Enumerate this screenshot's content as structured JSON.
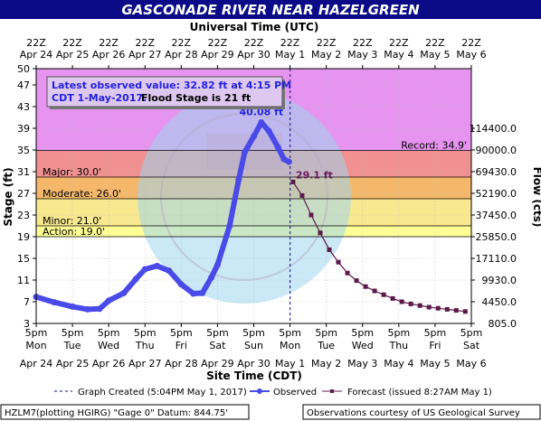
{
  "title": "GASCONADE RIVER NEAR HAZELGREEN",
  "top_axis_title": "Universal Time (UTC)",
  "bottom_axis_title": "Site Time (CDT)",
  "left_axis_title": "Stage (ft)",
  "right_axis_title": "Flow (cts)",
  "info_box": {
    "line1": "Latest observed value: 32.82 ft at 4:15 PM",
    "line2a": "CDT 1-May-2017.",
    "line2b": "Flood Stage is 21 ft"
  },
  "legend": {
    "created": "Graph Created (5:04PM May 1, 2017)",
    "observed": "Observed",
    "forecast": "Forecast (issued 8:27AM May 1)"
  },
  "footer": {
    "left": "HZLM7(plotting HGIRG) \"Gage 0\" Datum: 844.75'",
    "right": "Observations courtesy of US Geological Survey"
  },
  "colors": {
    "title_bar": "#0b0b88",
    "record": "#e694f0",
    "major": "#f09090",
    "moderate": "#f5b86a",
    "minor": "#f8e890",
    "action": "#ffff96",
    "observed": "#4a4ae8",
    "forecast": "#5c1a4a",
    "info_box_text": "#2222dd",
    "peak_label": "#2222dd",
    "forecast_label": "#6a1a5a"
  },
  "chart_data": {
    "type": "line",
    "x_time_axis": "Site Time (CDT)",
    "x_range": [
      "2017-04-24 17:00",
      "2017-05-06 17:00"
    ],
    "y_left": {
      "label": "Stage (ft)",
      "range": [
        3,
        50
      ],
      "ticks": [
        "3",
        "7",
        "11",
        "15",
        "19",
        "23",
        "27",
        "31",
        "35",
        "39",
        "43",
        "47",
        "50"
      ]
    },
    "y_right": {
      "label": "Flow (cts)",
      "ticks": [
        {
          "label": "805.0",
          "stage": 3
        },
        {
          "label": "4450.0",
          "stage": 7
        },
        {
          "label": "9930.0",
          "stage": 11
        },
        {
          "label": "17110.0",
          "stage": 15
        },
        {
          "label": "25850.0",
          "stage": 19
        },
        {
          "label": "37450.0",
          "stage": 23
        },
        {
          "label": "52190.0",
          "stage": 27
        },
        {
          "label": "69430.0",
          "stage": 31
        },
        {
          "label": "90000.0",
          "stage": 35
        },
        {
          "label": "114400.0",
          "stage": 39
        }
      ]
    },
    "bottom_ticks": [
      {
        "time": "5pm",
        "day": "Mon",
        "date": "Apr 24"
      },
      {
        "time": "5pm",
        "day": "Tue",
        "date": "Apr 25"
      },
      {
        "time": "5pm",
        "day": "Wed",
        "date": "Apr 26"
      },
      {
        "time": "5pm",
        "day": "Thu",
        "date": "Apr 27"
      },
      {
        "time": "5pm",
        "day": "Fri",
        "date": "Apr 28"
      },
      {
        "time": "5pm",
        "day": "Sat",
        "date": "Apr 29"
      },
      {
        "time": "5pm",
        "day": "Sun",
        "date": "Apr 30"
      },
      {
        "time": "5pm",
        "day": "Mon",
        "date": "May 1"
      },
      {
        "time": "5pm",
        "day": "Tue",
        "date": "May 2"
      },
      {
        "time": "5pm",
        "day": "Wed",
        "date": "May 3"
      },
      {
        "time": "5pm",
        "day": "Thu",
        "date": "May 4"
      },
      {
        "time": "5pm",
        "day": "Fri",
        "date": "May 5"
      },
      {
        "time": "5pm",
        "day": "Sat",
        "date": "May 6"
      }
    ],
    "top_ticks": [
      {
        "time": "22Z",
        "date": "Apr 24"
      },
      {
        "time": "22Z",
        "date": "Apr 25"
      },
      {
        "time": "22Z",
        "date": "Apr 26"
      },
      {
        "time": "22Z",
        "date": "Apr 27"
      },
      {
        "time": "22Z",
        "date": "Apr 28"
      },
      {
        "time": "22Z",
        "date": "Apr 29"
      },
      {
        "time": "22Z",
        "date": "Apr 30"
      },
      {
        "time": "22Z",
        "date": "May 1"
      },
      {
        "time": "22Z",
        "date": "May 2"
      },
      {
        "time": "22Z",
        "date": "May 3"
      },
      {
        "time": "22Z",
        "date": "May 4"
      },
      {
        "time": "22Z",
        "date": "May 5"
      },
      {
        "time": "22Z",
        "date": "May 6"
      }
    ],
    "flood_categories": [
      {
        "name": "Record",
        "label": "Record:  34.9'",
        "stage": 34.9,
        "top": 50
      },
      {
        "name": "Major",
        "label": "Major:  30.0'",
        "stage": 30.0,
        "top": 34.9
      },
      {
        "name": "Moderate",
        "label": "Moderate:  26.0'",
        "stage": 26.0,
        "top": 30.0
      },
      {
        "name": "Minor",
        "label": "Minor:  21.0'",
        "stage": 21.0,
        "top": 26.0
      },
      {
        "name": "Action",
        "label": "Action:  19.0'",
        "stage": 19.0,
        "top": 21.0
      }
    ],
    "observed": {
      "name": "Observed",
      "points": [
        [
          "2017-04-24 17:00",
          7.9
        ],
        [
          "2017-04-25 05:00",
          6.9
        ],
        [
          "2017-04-25 17:00",
          6.1
        ],
        [
          "2017-04-26 03:00",
          5.6
        ],
        [
          "2017-04-26 11:00",
          5.7
        ],
        [
          "2017-04-26 17:00",
          7.2
        ],
        [
          "2017-04-27 03:00",
          8.6
        ],
        [
          "2017-04-27 11:00",
          11.2
        ],
        [
          "2017-04-27 17:00",
          13.0
        ],
        [
          "2017-04-28 01:00",
          13.6
        ],
        [
          "2017-04-28 09:00",
          12.7
        ],
        [
          "2017-04-28 17:00",
          10.2
        ],
        [
          "2017-04-29 01:00",
          8.5
        ],
        [
          "2017-04-29 07:00",
          8.6
        ],
        [
          "2017-04-29 13:00",
          11.5
        ],
        [
          "2017-04-29 17:00",
          13.8
        ],
        [
          "2017-04-30 01:00",
          21.0
        ],
        [
          "2017-04-30 07:00",
          29.5
        ],
        [
          "2017-04-30 11:00",
          34.6
        ],
        [
          "2017-04-30 17:00",
          37.5
        ],
        [
          "2017-04-30 22:00",
          40.08
        ],
        [
          "2017-05-01 03:00",
          38.5
        ],
        [
          "2017-05-01 09:00",
          35.5
        ],
        [
          "2017-05-01 13:00",
          33.3
        ],
        [
          "2017-05-01 16:15",
          32.82
        ]
      ],
      "peak_label": "40.08 ft",
      "peak": [
        "2017-04-30 22:00",
        40.08
      ]
    },
    "forecast": {
      "name": "Forecast (issued 8:27AM May 1)",
      "points": [
        [
          "2017-05-01 19:00",
          29.1
        ],
        [
          "2017-05-02 01:00",
          26.6
        ],
        [
          "2017-05-02 07:00",
          23.0
        ],
        [
          "2017-05-02 13:00",
          19.7
        ],
        [
          "2017-05-02 19:00",
          16.6
        ],
        [
          "2017-05-03 01:00",
          14.3
        ],
        [
          "2017-05-03 07:00",
          12.3
        ],
        [
          "2017-05-03 13:00",
          10.9
        ],
        [
          "2017-05-03 19:00",
          9.8
        ],
        [
          "2017-05-04 01:00",
          9.0
        ],
        [
          "2017-05-04 07:00",
          8.3
        ],
        [
          "2017-05-04 13:00",
          7.6
        ],
        [
          "2017-05-04 19:00",
          7.0
        ],
        [
          "2017-05-05 01:00",
          6.6
        ],
        [
          "2017-05-05 07:00",
          6.3
        ],
        [
          "2017-05-05 13:00",
          6.0
        ],
        [
          "2017-05-05 19:00",
          5.8
        ],
        [
          "2017-05-06 01:00",
          5.6
        ],
        [
          "2017-05-06 07:00",
          5.4
        ],
        [
          "2017-05-06 13:00",
          5.2
        ]
      ],
      "first_label": "29.1 ft"
    },
    "created_line_time": "2017-05-01 17:04",
    "grid": true,
    "legend_position": "bottom"
  }
}
